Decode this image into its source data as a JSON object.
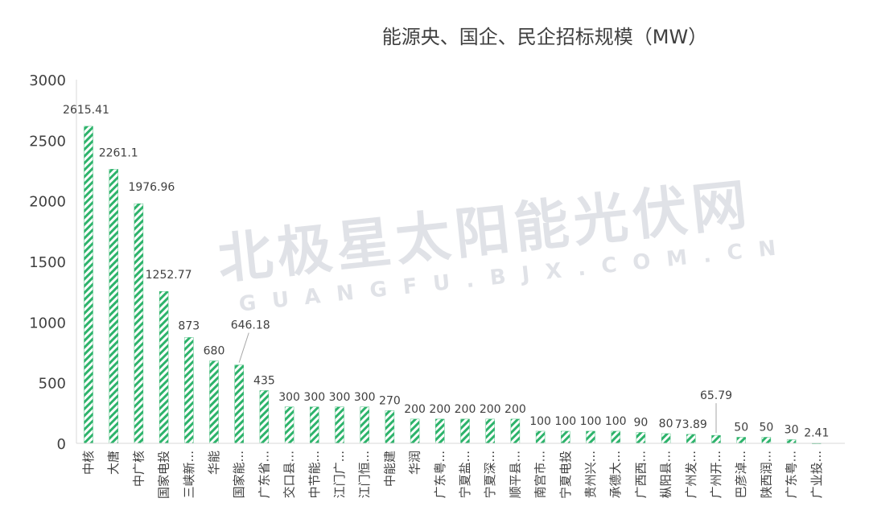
{
  "chart_data": {
    "type": "bar",
    "title": "能源央、国企、民企招标规模（MW）",
    "xlabel": "",
    "ylabel": "",
    "ylim": [
      0,
      3000
    ],
    "yticks": [
      0,
      500,
      1000,
      1500,
      2000,
      2500,
      3000
    ],
    "grid": false,
    "legend": "none",
    "bar_color": "#2db36b",
    "bar_pattern": "diagonal-hatch",
    "categories": [
      "中核",
      "大唐",
      "中广核",
      "国家电投",
      "三峡新...",
      "华能",
      "国家能...",
      "广东省...",
      "交口县...",
      "中节能...",
      "江门广...",
      "江门恒...",
      "中能建",
      "华润",
      "广东粤...",
      "宁夏盐...",
      "宁夏深...",
      "顺平县...",
      "南宫市...",
      "宁夏电投",
      "贵州兴...",
      "承德大...",
      "广西西...",
      "枞阳县...",
      "广州发...",
      "广州开...",
      "巴彦淖...",
      "陕西润...",
      "广东粤...",
      "广业投..."
    ],
    "values": [
      2615.41,
      2261.1,
      1976.96,
      1252.77,
      873,
      680,
      646.18,
      435,
      300,
      300,
      300,
      300,
      270,
      200,
      200,
      200,
      200,
      200,
      100,
      100,
      100,
      100,
      90,
      80,
      73.89,
      65.79,
      50,
      50,
      30,
      2.41
    ],
    "data_labels": [
      "2615.41",
      "2261.1",
      "1976.96",
      "1252.77",
      "873",
      "680",
      "646.18",
      "435",
      "300",
      "300",
      "300",
      "300",
      "270",
      "200",
      "200",
      "200",
      "200",
      "200",
      "100",
      "100",
      "100",
      "100",
      "90",
      "80",
      "73.89",
      "65.79",
      "50",
      "50",
      "30",
      "2.41"
    ]
  },
  "watermark": {
    "line1": "北极星太阳能光伏网",
    "line2": "GUANGFU.BJX.COM.CN"
  }
}
